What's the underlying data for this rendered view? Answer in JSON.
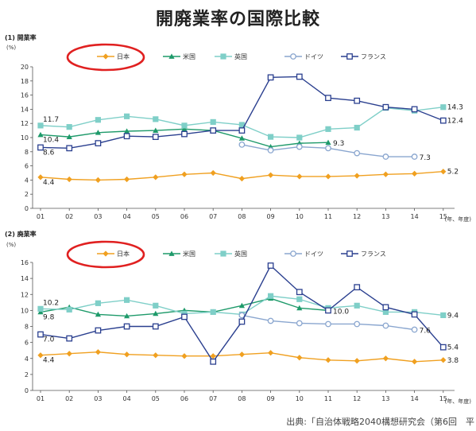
{
  "page": {
    "title": "開廃業率の国際比較",
    "source": "出典:「自治体戦略2040構想研究会（第6回　平"
  },
  "colors": {
    "japan": "#f0a020",
    "usa": "#1e9a6a",
    "uk": "#7fcfc8",
    "germany": "#8aa6cf",
    "france": "#2a3f8f",
    "highlight": "#e02020"
  },
  "chart_data": [
    {
      "type": "line",
      "title": "(1) 開業率",
      "ylabel": "(%)",
      "xlabel": "(年、年度)",
      "x": [
        "01",
        "02",
        "03",
        "04",
        "05",
        "06",
        "07",
        "08",
        "09",
        "10",
        "11",
        "12",
        "13",
        "14",
        "15"
      ],
      "ylim": [
        0,
        20
      ],
      "yticks": [
        0,
        2,
        4,
        6,
        8,
        10,
        12,
        14,
        16,
        18,
        20
      ],
      "legend": "top",
      "series": [
        {
          "key": "japan",
          "name": "日本",
          "marker": "diamond",
          "values": [
            4.4,
            4.1,
            4.0,
            4.1,
            4.4,
            4.8,
            5.0,
            4.2,
            4.7,
            4.5,
            4.5,
            4.6,
            4.8,
            4.9,
            5.2
          ]
        },
        {
          "key": "usa",
          "name": "米国",
          "marker": "triangle",
          "values": [
            10.4,
            10.1,
            10.7,
            10.9,
            11.0,
            11.2,
            11.0,
            9.9,
            8.7,
            9.2,
            9.3,
            null,
            null,
            null,
            null
          ]
        },
        {
          "key": "uk",
          "name": "英国",
          "marker": "square",
          "values": [
            11.7,
            11.5,
            12.5,
            13.0,
            12.6,
            11.7,
            12.2,
            11.8,
            10.1,
            10.0,
            11.2,
            11.4,
            14.2,
            13.8,
            14.3
          ]
        },
        {
          "key": "germany",
          "name": "ドイツ",
          "marker": "circle-open",
          "values": [
            null,
            null,
            null,
            null,
            null,
            null,
            null,
            9.0,
            8.2,
            8.7,
            8.5,
            7.8,
            7.3,
            7.3,
            null
          ]
        },
        {
          "key": "france",
          "name": "フランス",
          "marker": "square-open",
          "values": [
            8.6,
            8.5,
            9.2,
            10.2,
            10.1,
            10.5,
            11.0,
            11.0,
            18.5,
            18.6,
            15.6,
            15.2,
            14.3,
            14.0,
            12.4
          ]
        }
      ],
      "annotations": [
        {
          "text": "11.7",
          "series": "uk",
          "index": 0
        },
        {
          "text": "10.4",
          "series": "usa",
          "index": 0
        },
        {
          "text": "8.6",
          "series": "france",
          "index": 0
        },
        {
          "text": "4.4",
          "series": "japan",
          "index": 0
        },
        {
          "text": "9.3",
          "series": "usa",
          "index": 10
        },
        {
          "text": "7.3",
          "series": "germany",
          "index": 13
        },
        {
          "text": "14.3",
          "series": "uk",
          "index": 14
        },
        {
          "text": "12.4",
          "series": "france",
          "index": 14
        },
        {
          "text": "5.2",
          "series": "japan",
          "index": 14
        }
      ]
    },
    {
      "type": "line",
      "title": "(2) 廃業率",
      "ylabel": "(%)",
      "xlabel": "(年、年度)",
      "x": [
        "01",
        "02",
        "03",
        "04",
        "05",
        "06",
        "07",
        "08",
        "09",
        "10",
        "11",
        "12",
        "13",
        "14",
        "15"
      ],
      "ylim": [
        0,
        16
      ],
      "yticks": [
        0,
        2,
        4,
        6,
        8,
        10,
        12,
        14,
        16
      ],
      "legend": "top",
      "series": [
        {
          "key": "japan",
          "name": "日本",
          "marker": "diamond",
          "values": [
            4.4,
            4.6,
            4.8,
            4.5,
            4.4,
            4.3,
            4.3,
            4.5,
            4.7,
            4.1,
            3.8,
            3.7,
            4.0,
            3.6,
            3.8
          ]
        },
        {
          "key": "usa",
          "name": "米国",
          "marker": "triangle",
          "values": [
            9.8,
            10.4,
            9.5,
            9.3,
            9.6,
            10.0,
            9.8,
            10.6,
            11.5,
            10.3,
            10.0,
            null,
            null,
            null,
            null
          ]
        },
        {
          "key": "uk",
          "name": "英国",
          "marker": "square",
          "values": [
            10.2,
            10.1,
            10.9,
            11.3,
            10.6,
            9.6,
            9.8,
            9.5,
            11.8,
            11.4,
            10.3,
            10.6,
            9.8,
            9.8,
            9.4
          ]
        },
        {
          "key": "germany",
          "name": "ドイツ",
          "marker": "circle-open",
          "values": [
            null,
            null,
            null,
            null,
            null,
            null,
            null,
            9.4,
            8.7,
            8.4,
            8.3,
            8.3,
            8.1,
            7.6,
            null
          ]
        },
        {
          "key": "france",
          "name": "フランス",
          "marker": "square-open",
          "values": [
            7.0,
            6.5,
            7.5,
            8.0,
            8.0,
            9.2,
            3.6,
            8.6,
            15.6,
            12.3,
            10.0,
            12.9,
            10.4,
            9.5,
            5.4
          ]
        }
      ],
      "annotations": [
        {
          "text": "10.2",
          "series": "uk",
          "index": 0
        },
        {
          "text": "9.8",
          "series": "usa",
          "index": 0
        },
        {
          "text": "7.0",
          "series": "france",
          "index": 0
        },
        {
          "text": "4.4",
          "series": "japan",
          "index": 0
        },
        {
          "text": "10.0",
          "series": "usa",
          "index": 10
        },
        {
          "text": "7.6",
          "series": "germany",
          "index": 13
        },
        {
          "text": "9.4",
          "series": "uk",
          "index": 14
        },
        {
          "text": "5.4",
          "series": "france",
          "index": 14
        },
        {
          "text": "3.8",
          "series": "japan",
          "index": 14
        }
      ]
    }
  ]
}
